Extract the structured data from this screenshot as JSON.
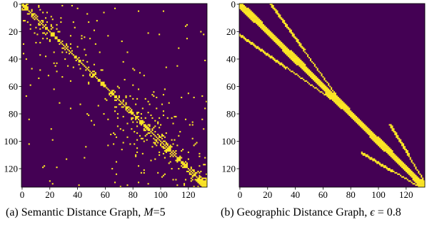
{
  "colors": {
    "background": "#440154",
    "edge": "#fde725"
  },
  "chart_data": [
    {
      "type": "heatmap",
      "title": "",
      "caption": {
        "prefix": "(a)",
        "text": "Semantic Distance Graph,",
        "param_symbol": "M",
        "param_value": "=5"
      },
      "xlabel": "",
      "ylabel": "",
      "matrix_size": 134,
      "xlim": [
        0,
        134
      ],
      "ylim": [
        134,
        0
      ],
      "x_ticks": [
        0,
        20,
        40,
        60,
        80,
        100,
        120
      ],
      "y_ticks": [
        0,
        20,
        40,
        60,
        80,
        100,
        120
      ],
      "pattern": "scattered-sparse-symmetric",
      "diagonal": true,
      "dense_blocks": [
        [
          0,
          4
        ],
        [
          127,
          133
        ]
      ],
      "colorbar": false,
      "grid": false
    },
    {
      "type": "heatmap",
      "title": "",
      "caption": {
        "prefix": "(b)",
        "text": "Geographic Distance Graph,",
        "param_symbol": "ϵ",
        "param_value": " = 0.8"
      },
      "xlabel": "",
      "ylabel": "",
      "matrix_size": 134,
      "xlim": [
        0,
        134
      ],
      "ylim": [
        134,
        0
      ],
      "x_ticks": [
        0,
        20,
        40,
        60,
        80,
        100,
        120
      ],
      "y_ticks": [
        0,
        20,
        40,
        60,
        80,
        100,
        120
      ],
      "pattern": "banded-symmetric",
      "diagonal": true,
      "main_band_halfwidth": 2,
      "offdiagonal_bands": [
        {
          "row_start": 0,
          "row_end": 67,
          "offset_start": 22,
          "offset_end": 3
        },
        {
          "row_start": 88,
          "row_end": 134,
          "offset_start": 20,
          "offset_end": 2
        }
      ],
      "colorbar": false,
      "grid": false
    }
  ]
}
